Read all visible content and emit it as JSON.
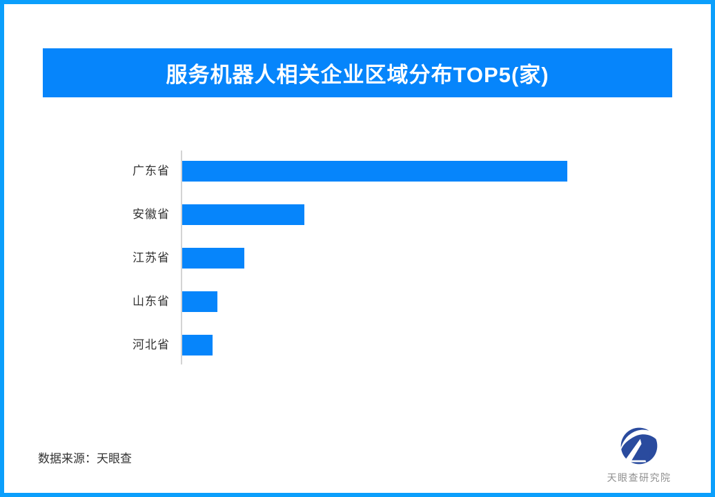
{
  "title": "服务机器人相关企业区域分布TOP5(家)",
  "chart_data": {
    "type": "bar",
    "orientation": "horizontal",
    "title": "服务机器人相关企业区域分布TOP5(家)",
    "categories": [
      "广东省",
      "安徽省",
      "江苏省",
      "山东省",
      "河北省"
    ],
    "values": [
      558,
      177,
      90,
      51,
      44
    ],
    "value_scale": "relative-bar-length-px",
    "value_labels_shown": false,
    "xlabel": "",
    "ylabel": "",
    "grid": false,
    "legend": false,
    "bar_color": "#0685fb",
    "axis_color": "#d4d4d4",
    "label_color": "#333333"
  },
  "source": {
    "label": "数据来源：天眼查"
  },
  "logo": {
    "name": "天眼查研究院",
    "mark_color": "#2a4b9e",
    "text_color": "#8f8f8f"
  },
  "frame": {
    "border_color": "#0b9ffc",
    "banner_color": "#0685fb",
    "background_color": "#ffffff"
  }
}
